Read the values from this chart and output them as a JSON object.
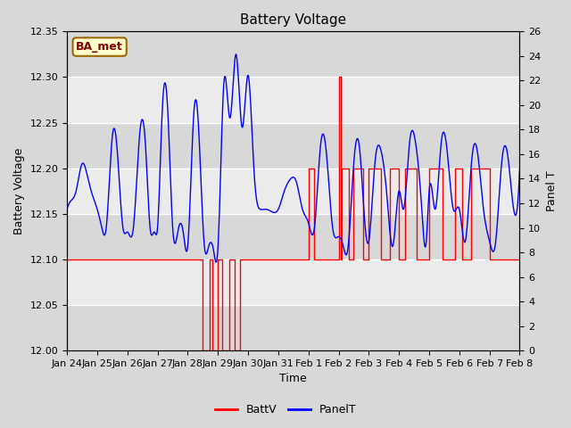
{
  "title": "Battery Voltage",
  "xlabel": "Time",
  "ylabel_left": "Battery Voltage",
  "ylabel_right": "Panel T",
  "ylim_left": [
    12.0,
    12.35
  ],
  "ylim_right": [
    0,
    26
  ],
  "yticks_left": [
    12.0,
    12.05,
    12.1,
    12.15,
    12.2,
    12.25,
    12.3,
    12.35
  ],
  "yticks_right": [
    0,
    2,
    4,
    6,
    8,
    10,
    12,
    14,
    16,
    18,
    20,
    22,
    24,
    26
  ],
  "bg_color": "#d8d8d8",
  "plot_bg_color": "#ebebeb",
  "annotation_text": "BA_met",
  "annotation_bg": "#ffffcc",
  "annotation_border": "#996600",
  "batt_color": "red",
  "panel_color": "blue",
  "legend_batt": "BattV",
  "legend_panel": "PanelT",
  "x_tick_labels": [
    "Jan 24",
    "Jan 25",
    "Jan 26",
    "Jan 27",
    "Jan 28",
    "Jan 29",
    "Jan 30",
    "Jan 31",
    "Feb 1",
    "Feb 2",
    "Feb 3",
    "Feb 4",
    "Feb 5",
    "Feb 6",
    "Feb 7",
    "Feb 8"
  ]
}
